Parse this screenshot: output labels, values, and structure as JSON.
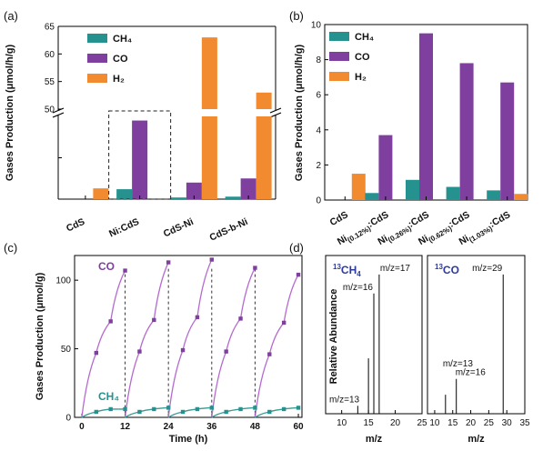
{
  "colors": {
    "CH4": "#26928f",
    "CO": "#7f3f9e",
    "H2": "#f28a2f",
    "iso": "#2b3a9e",
    "lineCO": "#b56ad0",
    "lineCH4": "#3a9a94"
  },
  "chart_data": [
    {
      "panel": "(a)",
      "type": "bar",
      "ylabel": "Gases Production (μmol/h/g)",
      "ylim_lower": [
        0,
        10
      ],
      "ylim_upper": [
        50,
        65
      ],
      "yticks_upper": [
        "50",
        "55",
        "60",
        "65"
      ],
      "categories": [
        "CdS",
        "Ni:CdS",
        "CdS-Ni",
        "CdS-b-Ni"
      ],
      "series": [
        {
          "name": "CH₄",
          "key": "CH4",
          "values": [
            0,
            1.2,
            0.2,
            0.3
          ]
        },
        {
          "name": "CO",
          "key": "CO",
          "values": [
            0,
            9.5,
            2.0,
            2.5
          ]
        },
        {
          "name": "H₂",
          "key": "H2",
          "values": [
            1.3,
            0,
            63.0,
            53.0
          ]
        }
      ],
      "legend": [
        "CH₄",
        "CO",
        "H₂"
      ]
    },
    {
      "panel": "(b)",
      "type": "bar",
      "ylabel": "Gases Production (μmol/h/g)",
      "ylim": [
        0,
        10
      ],
      "yticks": [
        "0",
        "2",
        "4",
        "6",
        "8",
        "10"
      ],
      "categories": [
        "CdS",
        "Ni(0.12%):CdS",
        "Ni(0.26%):CdS",
        "Ni(0.62%):CdS",
        "Ni(1.03%):CdS"
      ],
      "category_main": [
        "CdS",
        "Ni",
        "Ni",
        "Ni",
        "Ni"
      ],
      "category_sub": [
        "",
        "(0.12%)",
        "(0.26%)",
        "(0.62%)",
        "(1.03%)"
      ],
      "category_tail": [
        "",
        ":CdS",
        ":CdS",
        ":CdS",
        ":CdS"
      ],
      "series": [
        {
          "name": "CH₄",
          "key": "CH4",
          "values": [
            0,
            0.4,
            1.15,
            0.75,
            0.55
          ]
        },
        {
          "name": "CO",
          "key": "CO",
          "values": [
            0,
            3.7,
            9.5,
            7.8,
            6.7
          ]
        },
        {
          "name": "H₂",
          "key": "H2",
          "values": [
            1.5,
            0,
            0,
            0,
            0.35
          ]
        }
      ],
      "legend": [
        "CH₄",
        "CO",
        "H₂"
      ]
    },
    {
      "panel": "(c)",
      "type": "line",
      "xlabel": "Time (h)",
      "ylabel": "Gases Production (μmol/g)",
      "xlim": [
        -2,
        61
      ],
      "ylim": [
        0,
        118
      ],
      "xticks": [
        "0",
        "12",
        "24",
        "36",
        "48",
        "60"
      ],
      "yticks": [
        "0",
        "50",
        "100"
      ],
      "cycle_times": [
        0,
        4,
        8,
        12
      ],
      "series": [
        {
          "name": "CO",
          "key": "CO",
          "cycles": [
            [
              0,
              47,
              70,
              107
            ],
            [
              0,
              48,
              71,
              113
            ],
            [
              0,
              49,
              73,
              115
            ],
            [
              0,
              48,
              72,
              109
            ],
            [
              0,
              46,
              69,
              104
            ]
          ]
        },
        {
          "name": "CH₄",
          "key": "CH4",
          "cycles": [
            [
              0,
              4,
              6,
              6
            ],
            [
              0,
              4,
              6,
              7
            ],
            [
              0,
              4,
              6,
              7
            ],
            [
              0,
              4,
              6,
              7
            ],
            [
              0,
              4,
              6,
              7
            ]
          ]
        }
      ],
      "dividers": [
        12,
        24,
        36,
        48
      ]
    },
    {
      "panel": "(d)",
      "type": "bar",
      "ylabel": "Relative Abundance",
      "subplots": [
        {
          "title_main": "CH",
          "title_sup": "13",
          "title_sub": "4",
          "xlabel": "m/z",
          "xlim": [
            7,
            25
          ],
          "xticks": [
            "10",
            "15",
            "20",
            "25"
          ],
          "peaks": [
            {
              "mz": 13,
              "h": 0.05
            },
            {
              "mz": 15,
              "h": 0.35
            },
            {
              "mz": 16,
              "h": 0.76
            },
            {
              "mz": 17,
              "h": 0.88
            }
          ],
          "labels": [
            {
              "text": "m/z=13",
              "mz": 13
            },
            {
              "text": "m/z=16",
              "mz": 16
            },
            {
              "text": "m/z=17",
              "mz": 17
            }
          ]
        },
        {
          "title_main": "CO",
          "title_sup": "13",
          "title_sub": "",
          "xlabel": "m/z",
          "xlim": [
            8,
            35
          ],
          "xticks": [
            "10",
            "15",
            "20",
            "25",
            "30",
            "35"
          ],
          "peaks": [
            {
              "mz": 13,
              "h": 0.12
            },
            {
              "mz": 16,
              "h": 0.22
            },
            {
              "mz": 29,
              "h": 0.88
            }
          ],
          "labels": [
            {
              "text": "m/z=13",
              "mz": 13
            },
            {
              "text": "m/z=16",
              "mz": 16
            },
            {
              "text": "m/z=29",
              "mz": 29
            }
          ]
        }
      ]
    }
  ]
}
